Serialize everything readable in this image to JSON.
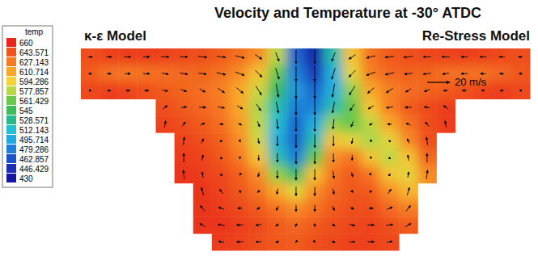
{
  "chart_data": {
    "type": "heatmap",
    "title": "Velocity and Temperature at -30° ATDC",
    "annotations": [
      "κ-ε Model",
      "Re-Stress Model"
    ],
    "tick_labels": false,
    "values": [
      [
        645,
        650,
        652,
        652,
        650,
        648,
        645,
        640,
        632,
        620,
        580,
        470,
        440,
        520,
        600,
        630,
        640,
        645,
        648,
        650,
        652,
        650,
        648,
        645
      ],
      [
        640,
        630,
        628,
        630,
        632,
        634,
        636,
        630,
        620,
        600,
        560,
        480,
        450,
        500,
        590,
        625,
        635,
        638,
        636,
        632,
        630,
        630,
        635,
        642
      ],
      [
        648,
        652,
        650,
        645,
        640,
        636,
        632,
        625,
        610,
        585,
        540,
        490,
        470,
        500,
        570,
        610,
        625,
        632,
        636,
        640,
        645,
        650,
        652,
        648
      ],
      [
        null,
        null,
        null,
        null,
        645,
        640,
        635,
        628,
        610,
        575,
        520,
        480,
        480,
        520,
        560,
        600,
        625,
        640,
        648,
        652,
        null,
        null,
        null,
        null
      ],
      [
        null,
        null,
        null,
        null,
        650,
        645,
        640,
        632,
        615,
        580,
        510,
        470,
        500,
        570,
        560,
        580,
        610,
        630,
        645,
        652,
        null,
        null,
        null,
        null
      ],
      [
        null,
        null,
        null,
        null,
        null,
        650,
        645,
        638,
        620,
        585,
        500,
        470,
        520,
        600,
        590,
        575,
        590,
        620,
        645,
        null,
        null,
        null,
        null,
        null
      ],
      [
        null,
        null,
        null,
        null,
        null,
        652,
        650,
        642,
        628,
        600,
        520,
        480,
        560,
        620,
        630,
        600,
        580,
        600,
        635,
        null,
        null,
        null,
        null,
        null
      ],
      [
        null,
        null,
        null,
        null,
        null,
        655,
        652,
        648,
        638,
        620,
        570,
        540,
        600,
        630,
        640,
        630,
        600,
        590,
        620,
        null,
        null,
        null,
        null,
        null
      ],
      [
        null,
        null,
        null,
        null,
        null,
        null,
        655,
        650,
        642,
        630,
        610,
        590,
        620,
        635,
        642,
        640,
        620,
        605,
        null,
        null,
        null,
        null,
        null,
        null
      ],
      [
        null,
        null,
        null,
        null,
        null,
        null,
        655,
        652,
        648,
        640,
        630,
        620,
        630,
        640,
        645,
        645,
        635,
        625,
        null,
        null,
        null,
        null,
        null,
        null
      ],
      [
        null,
        null,
        null,
        null,
        null,
        null,
        655,
        655,
        652,
        648,
        640,
        635,
        640,
        645,
        648,
        650,
        645,
        640,
        null,
        null,
        null,
        null,
        null,
        null
      ],
      [
        null,
        null,
        null,
        null,
        null,
        null,
        null,
        652,
        650,
        645,
        642,
        640,
        645,
        648,
        650,
        650,
        648,
        null,
        null,
        null,
        null,
        null,
        null,
        null
      ]
    ],
    "colorbar": {
      "title": "temp",
      "range": [
        430,
        660
      ],
      "ticks": [
        660,
        643.571,
        627.143,
        610.714,
        594.286,
        577.857,
        561.429,
        545,
        528.571,
        512.143,
        495.714,
        479.286,
        462.857,
        446.429,
        430
      ]
    },
    "vectors": {
      "reference": {
        "value": 20,
        "label": "20 m/s"
      },
      "u": [
        [
          4,
          5,
          6,
          6,
          7,
          7,
          8,
          8,
          8,
          6,
          3,
          0,
          0,
          -3,
          -6,
          -8,
          -8,
          -8,
          -7,
          -7,
          -6,
          -6,
          -5,
          -4
        ],
        [
          3,
          4,
          5,
          6,
          6,
          7,
          7,
          8,
          8,
          6,
          3,
          0,
          0,
          -3,
          -6,
          -8,
          -8,
          -7,
          -7,
          -6,
          -6,
          -5,
          -4,
          -3
        ],
        [
          2,
          3,
          4,
          4,
          5,
          5,
          5,
          6,
          6,
          5,
          2,
          0,
          0,
          -2,
          -5,
          -6,
          -6,
          -5,
          -5,
          -4,
          -4,
          -3,
          -3,
          -2
        ],
        [
          null,
          null,
          null,
          null,
          4,
          5,
          6,
          6,
          5,
          4,
          2,
          0,
          0,
          -2,
          -4,
          -5,
          -6,
          -6,
          -5,
          -4,
          null,
          null,
          null,
          null
        ],
        [
          null,
          null,
          null,
          null,
          1,
          3,
          4,
          4,
          3,
          2,
          1,
          0,
          0,
          -1,
          -2,
          -3,
          -4,
          -4,
          -3,
          -1,
          null,
          null,
          null,
          null
        ],
        [
          null,
          null,
          null,
          null,
          null,
          1,
          2,
          2,
          1,
          1,
          0,
          0,
          0,
          0,
          -1,
          -1,
          -2,
          -2,
          -1,
          null,
          null,
          null,
          null,
          null
        ],
        [
          null,
          null,
          null,
          null,
          null,
          0,
          1,
          0,
          0,
          0,
          0,
          0,
          0,
          0,
          0,
          0,
          0,
          -1,
          0,
          null,
          null,
          null,
          null,
          null
        ],
        [
          null,
          null,
          null,
          null,
          null,
          -1,
          -1,
          -1,
          -1,
          -1,
          0,
          0,
          0,
          1,
          1,
          1,
          1,
          1,
          1,
          null,
          null,
          null,
          null,
          null
        ],
        [
          null,
          null,
          null,
          null,
          null,
          null,
          -2,
          -3,
          -2,
          -2,
          -1,
          0,
          0,
          1,
          2,
          2,
          3,
          2,
          null,
          null,
          null,
          null,
          null,
          null
        ],
        [
          null,
          null,
          null,
          null,
          null,
          null,
          -4,
          -5,
          -4,
          -3,
          -2,
          0,
          0,
          2,
          3,
          4,
          5,
          4,
          null,
          null,
          null,
          null,
          null,
          null
        ],
        [
          null,
          null,
          null,
          null,
          null,
          null,
          -5,
          -6,
          -6,
          -5,
          -3,
          -1,
          1,
          3,
          5,
          6,
          6,
          5,
          null,
          null,
          null,
          null,
          null,
          null
        ],
        [
          null,
          null,
          null,
          null,
          null,
          null,
          null,
          -5,
          -6,
          -5,
          -3,
          -1,
          1,
          3,
          5,
          6,
          5,
          null,
          null,
          null,
          null,
          null,
          null,
          null
        ]
      ],
      "v": [
        [
          0,
          0,
          0,
          0,
          0,
          0,
          -1,
          -1,
          -2,
          -4,
          -8,
          -12,
          -12,
          -8,
          -4,
          -2,
          -1,
          -1,
          0,
          0,
          0,
          0,
          0,
          0
        ],
        [
          0,
          0,
          0,
          0,
          -1,
          -1,
          -1,
          -2,
          -3,
          -6,
          -10,
          -14,
          -14,
          -10,
          -6,
          -3,
          -2,
          -1,
          -1,
          -1,
          0,
          0,
          0,
          0
        ],
        [
          0,
          0,
          0,
          0,
          -1,
          -2,
          -3,
          -4,
          -5,
          -8,
          -12,
          -15,
          -15,
          -12,
          -8,
          -5,
          -4,
          -3,
          -2,
          -1,
          0,
          0,
          0,
          0
        ],
        [
          null,
          null,
          null,
          null,
          3,
          1,
          0,
          -1,
          -3,
          -6,
          -10,
          -14,
          -14,
          -10,
          -6,
          -3,
          -1,
          0,
          1,
          3,
          null,
          null,
          null,
          null
        ],
        [
          null,
          null,
          null,
          null,
          6,
          4,
          2,
          0,
          -2,
          -5,
          -9,
          -13,
          -13,
          -9,
          -5,
          -2,
          0,
          2,
          4,
          6,
          null,
          null,
          null,
          null
        ],
        [
          null,
          null,
          null,
          null,
          null,
          7,
          4,
          1,
          -2,
          -5,
          -9,
          -12,
          -12,
          -9,
          -5,
          -2,
          1,
          4,
          7,
          null,
          null,
          null,
          null,
          null
        ],
        [
          null,
          null,
          null,
          null,
          null,
          8,
          5,
          2,
          -2,
          -5,
          -8,
          -11,
          -11,
          -8,
          -5,
          -2,
          2,
          5,
          8,
          null,
          null,
          null,
          null,
          null
        ],
        [
          null,
          null,
          null,
          null,
          null,
          8,
          5,
          2,
          -1,
          -4,
          -7,
          -10,
          -10,
          -7,
          -4,
          -1,
          2,
          5,
          8,
          null,
          null,
          null,
          null,
          null
        ],
        [
          null,
          null,
          null,
          null,
          null,
          null,
          7,
          4,
          1,
          -2,
          -5,
          -8,
          -8,
          -5,
          -2,
          1,
          4,
          7,
          null,
          null,
          null,
          null,
          null,
          null
        ],
        [
          null,
          null,
          null,
          null,
          null,
          null,
          5,
          2,
          0,
          -2,
          -4,
          -6,
          -6,
          -4,
          -2,
          0,
          2,
          5,
          null,
          null,
          null,
          null,
          null,
          null
        ],
        [
          null,
          null,
          null,
          null,
          null,
          null,
          3,
          1,
          0,
          -1,
          -2,
          -3,
          -3,
          -2,
          -1,
          0,
          1,
          3,
          null,
          null,
          null,
          null,
          null,
          null
        ],
        [
          null,
          null,
          null,
          null,
          null,
          null,
          null,
          1,
          0,
          0,
          -1,
          -1,
          -1,
          -1,
          0,
          0,
          1,
          null,
          null,
          null,
          null,
          null,
          null,
          null
        ]
      ]
    }
  }
}
